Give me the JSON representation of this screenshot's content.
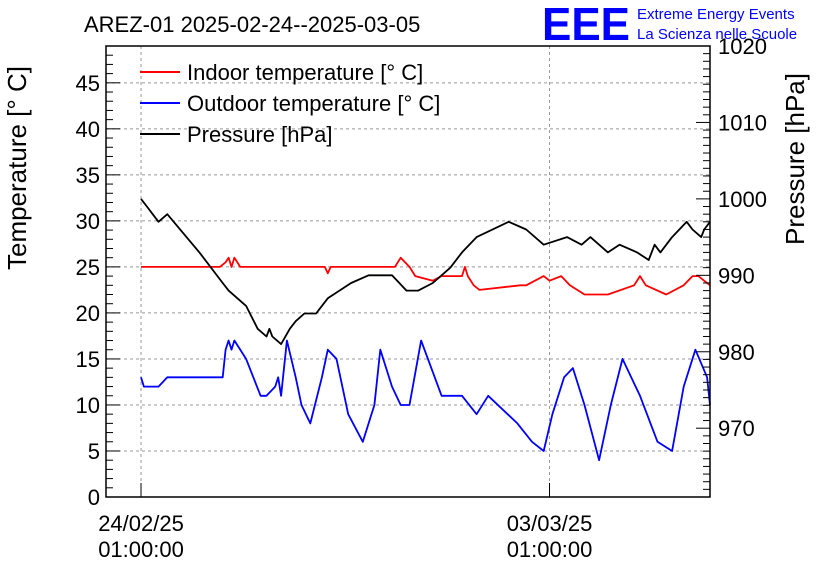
{
  "logo": {
    "text": "EEE",
    "line1": "Extreme Energy Events",
    "line2": "La Scienza nelle Scuole",
    "color": "#0000ff"
  },
  "chart_data": {
    "type": "line",
    "title": "AREZ-01 2025-02-24--2025-03-05",
    "ylabel": "Temperature [° C]",
    "y2label": "Pressure [hPa]",
    "ylim": [
      0,
      49
    ],
    "y2lim": [
      961,
      1020
    ],
    "xlim": [
      -0.6,
      9.75
    ],
    "yticks": [
      0,
      5,
      10,
      15,
      20,
      25,
      30,
      35,
      40,
      45
    ],
    "y2ticks": [
      970,
      980,
      990,
      1000,
      1010,
      1020
    ],
    "xticks": [
      {
        "x": 0,
        "line1": "24/02/25",
        "line2": "01:00:00"
      },
      {
        "x": 7,
        "line1": "03/03/25",
        "line2": "01:00:00"
      }
    ],
    "grid": true,
    "legend_position": "top-left",
    "series": [
      {
        "name": "Indoor temperature [° C]",
        "color": "#ff0000",
        "axis": "left",
        "x": [
          0,
          1.35,
          1.45,
          1.5,
          1.55,
          1.6,
          1.7,
          3.15,
          3.2,
          3.25,
          4.35,
          4.45,
          4.6,
          4.7,
          5.0,
          5.15,
          5.5,
          5.55,
          5.6,
          5.7,
          5.8,
          6.5,
          6.6,
          6.9,
          7.0,
          7.2,
          7.35,
          7.6,
          8.0,
          8.45,
          8.55,
          8.65,
          9.0,
          9.3,
          9.45,
          9.55,
          9.75
        ],
        "y": [
          25,
          25,
          25.5,
          26,
          25,
          26,
          25,
          25,
          24.3,
          25,
          25,
          26,
          25,
          24,
          23.5,
          24,
          24,
          25,
          24,
          23,
          22.5,
          23,
          23,
          24,
          23.5,
          24,
          23,
          22,
          22,
          23,
          24,
          23,
          22,
          23,
          24,
          24,
          23
        ]
      },
      {
        "name": "Outdoor temperature [° C]",
        "color": "#0000ff",
        "axis": "left",
        "x": [
          0,
          0.05,
          0.3,
          0.45,
          1.4,
          1.45,
          1.5,
          1.55,
          1.6,
          1.8,
          2.05,
          2.15,
          2.3,
          2.35,
          2.4,
          2.5,
          2.65,
          2.75,
          2.9,
          3.1,
          3.2,
          3.35,
          3.55,
          3.8,
          4.0,
          4.1,
          4.3,
          4.45,
          4.6,
          4.8,
          5.15,
          5.5,
          5.75,
          5.95,
          6.45,
          6.7,
          6.9,
          7.05,
          7.25,
          7.4,
          7.6,
          7.85,
          8.05,
          8.25,
          8.55,
          8.85,
          9.1,
          9.3,
          9.5,
          9.7,
          9.75
        ],
        "y": [
          13,
          12,
          12,
          13,
          13,
          16,
          17,
          16,
          17,
          15,
          11,
          11,
          12,
          13,
          11,
          17,
          13,
          10,
          8,
          13,
          16,
          15,
          9,
          6,
          10,
          16,
          12,
          10,
          10,
          17,
          11,
          11,
          9,
          11,
          8,
          6,
          5,
          9,
          13,
          14,
          10,
          4,
          10,
          15,
          11,
          6,
          5,
          12,
          16,
          13,
          10
        ]
      },
      {
        "name": "Pressure [hPa]",
        "color": "#000000",
        "axis": "right",
        "x": [
          0,
          0.1,
          0.2,
          0.3,
          0.45,
          1.0,
          1.4,
          1.5,
          1.8,
          2.0,
          2.15,
          2.2,
          2.25,
          2.4,
          2.55,
          2.65,
          2.8,
          3.0,
          3.1,
          3.2,
          3.6,
          3.9,
          4.3,
          4.55,
          4.75,
          5.0,
          5.3,
          5.5,
          5.75,
          6.3,
          6.6,
          6.9,
          7.3,
          7.55,
          7.7,
          8.0,
          8.2,
          8.5,
          8.7,
          8.8,
          8.9,
          9.1,
          9.35,
          9.45,
          9.6,
          9.65,
          9.75
        ],
        "y": [
          1000,
          999,
          998,
          997,
          998,
          993,
          989,
          988,
          986,
          983,
          982,
          983,
          982,
          981,
          983,
          984,
          985,
          985,
          986,
          987,
          989,
          990,
          990,
          988,
          988,
          989,
          991,
          993,
          995,
          997,
          996,
          994,
          995,
          994,
          995,
          993,
          994,
          993,
          992,
          994,
          993,
          995,
          997,
          996,
          995,
          996,
          997
        ]
      }
    ]
  }
}
